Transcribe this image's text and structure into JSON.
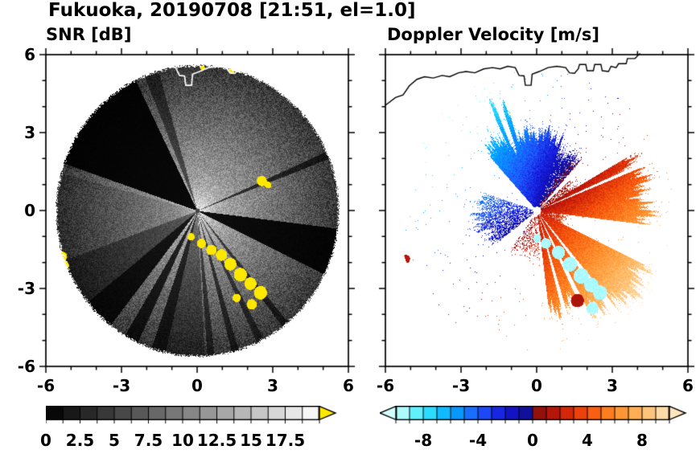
{
  "title": "Fukuoka, 20190708 [21:51, el=1.0]",
  "panels": {
    "left": {
      "subtitle": "SNR [dB]"
    },
    "right": {
      "subtitle": "Doppler Velocity [m/s]"
    }
  },
  "axes": {
    "xlim": [
      -6,
      6
    ],
    "ylim": [
      -6,
      6
    ],
    "major_ticks": [
      -6,
      -3,
      0,
      3,
      6
    ],
    "minor_tick_step": 1,
    "x_tick_labels": [
      "-6",
      "-3",
      "0",
      "3",
      "6"
    ],
    "y_tick_labels": [
      "-6",
      "-3",
      "0",
      "3",
      "6"
    ]
  },
  "colorbars": {
    "snr": {
      "min": 0,
      "max": 20,
      "bin_width": 1.25,
      "tick_values": [
        0,
        2.5,
        5,
        7.5,
        10,
        12.5,
        15,
        17.5
      ],
      "tick_labels": [
        "0",
        "2.5",
        "5",
        "7.5",
        "10",
        "12.5",
        "15",
        "17.5"
      ],
      "low_color": "#000000",
      "high_color": "#ffffff",
      "over_arrow_color": "#ffe800"
    },
    "velocity": {
      "min": -10,
      "max": 10,
      "bin_width": 1,
      "tick_values": [
        -8,
        -4,
        0,
        4,
        8
      ],
      "tick_labels": [
        "-8",
        "-4",
        "0",
        "4",
        "8"
      ]
    }
  },
  "coastline_km": [
    [
      -6.0,
      4.05
    ],
    [
      -5.6,
      4.35
    ],
    [
      -5.3,
      4.45
    ],
    [
      -5.05,
      4.8
    ],
    [
      -4.75,
      5.05
    ],
    [
      -4.45,
      5.15
    ],
    [
      -4.1,
      5.1
    ],
    [
      -3.75,
      5.2
    ],
    [
      -3.45,
      5.15
    ],
    [
      -3.1,
      5.3
    ],
    [
      -2.8,
      5.35
    ],
    [
      -2.45,
      5.3
    ],
    [
      -2.1,
      5.45
    ],
    [
      -1.75,
      5.5
    ],
    [
      -1.45,
      5.45
    ],
    [
      -1.15,
      5.55
    ],
    [
      -0.85,
      5.5
    ],
    [
      -0.7,
      5.2
    ],
    [
      -0.5,
      5.18
    ],
    [
      -0.45,
      4.82
    ],
    [
      -0.22,
      4.82
    ],
    [
      -0.18,
      5.25
    ],
    [
      0.1,
      5.35
    ],
    [
      0.45,
      5.5
    ],
    [
      0.8,
      5.55
    ],
    [
      1.15,
      5.5
    ],
    [
      1.3,
      5.3
    ],
    [
      1.5,
      5.28
    ],
    [
      1.65,
      5.45
    ],
    [
      1.7,
      5.62
    ],
    [
      1.95,
      5.62
    ],
    [
      2.0,
      5.38
    ],
    [
      2.25,
      5.38
    ],
    [
      2.3,
      5.62
    ],
    [
      2.55,
      5.62
    ],
    [
      2.6,
      5.38
    ],
    [
      2.85,
      5.35
    ],
    [
      2.95,
      5.55
    ],
    [
      3.15,
      5.5
    ],
    [
      3.25,
      5.65
    ],
    [
      3.55,
      5.65
    ],
    [
      3.6,
      5.85
    ],
    [
      3.9,
      5.85
    ],
    [
      4.1,
      6.05
    ]
  ],
  "chart_data": [
    {
      "type": "heatmap",
      "panel": "left",
      "title": "SNR [dB]",
      "units": "dB",
      "xlim": [
        -6,
        6
      ],
      "ylim": [
        -6,
        6
      ],
      "xticks": [
        -6,
        -3,
        0,
        3,
        6
      ],
      "yticks": [
        -6,
        -3,
        0,
        3,
        6
      ],
      "radar": {
        "max_range_km": 5.65,
        "snr_center_db": 15.5,
        "falloff_db_per_km": 2.05,
        "center_boost_db": 3.2,
        "speckle_db": 6,
        "sector_gains": [
          {
            "az": [
              289,
              334
            ],
            "gain": 0.05
          },
          {
            "az": [
              338,
              344
            ],
            "gain": 0.45
          },
          {
            "az": [
              97,
              116
            ],
            "gain": 0.07
          },
          {
            "az": [
              66,
              69
            ],
            "gain": 0.3
          },
          {
            "az": [
              140,
              143
            ],
            "gain": 0.35
          },
          {
            "az": [
              152,
              155
            ],
            "gain": 0.4
          },
          {
            "az": [
              163,
              166
            ],
            "gain": 0.35
          },
          {
            "az": [
              173,
              176
            ],
            "gain": 0.4
          },
          {
            "az": [
              177,
              193
            ],
            "gain": 0.55
          },
          {
            "az": [
              193,
              199
            ],
            "gain": 0.22
          },
          {
            "az": [
              205,
              211
            ],
            "gain": 0.2
          },
          {
            "az": [
              218,
              231
            ],
            "gain": 0.12
          },
          {
            "az": [
              231,
              250
            ],
            "gain": 0.45
          },
          {
            "az": [
              250,
              285
            ],
            "gain": 0.75
          }
        ],
        "strong_echoes_km": [
          {
            "x": -0.25,
            "y": -1.0,
            "r": 0.14
          },
          {
            "x": 0.15,
            "y": -1.25,
            "r": 0.18
          },
          {
            "x": 0.55,
            "y": -1.5,
            "r": 0.2
          },
          {
            "x": 0.95,
            "y": -1.7,
            "r": 0.22
          },
          {
            "x": 1.3,
            "y": -2.05,
            "r": 0.24
          },
          {
            "x": 1.7,
            "y": -2.45,
            "r": 0.26
          },
          {
            "x": 2.1,
            "y": -2.8,
            "r": 0.24
          },
          {
            "x": 2.5,
            "y": -3.15,
            "r": 0.26
          },
          {
            "x": 2.15,
            "y": -3.6,
            "r": 0.2
          },
          {
            "x": 1.55,
            "y": -3.35,
            "r": 0.16
          },
          {
            "x": 2.55,
            "y": 1.15,
            "r": 0.2
          },
          {
            "x": 2.8,
            "y": 1.0,
            "r": 0.13
          },
          {
            "x": -5.35,
            "y": -1.75,
            "r": 0.18
          },
          {
            "x": -5.3,
            "y": -2.1,
            "r": 0.2
          },
          {
            "x": 1.35,
            "y": 5.4,
            "r": 0.12
          },
          {
            "x": 1.65,
            "y": 5.45,
            "r": 0.12
          },
          {
            "x": 0.2,
            "y": 5.5,
            "r": 0.09
          }
        ]
      },
      "colormap": {
        "min": 0,
        "max": 20,
        "low": "#000000",
        "high": "#ffffff",
        "over": "#ffe800"
      }
    },
    {
      "type": "heatmap",
      "panel": "right",
      "title": "Doppler Velocity [m/s]",
      "units": "m/s",
      "xlim": [
        -6,
        6
      ],
      "ylim": [
        -6,
        6
      ],
      "xticks": [
        -6,
        -3,
        0,
        3,
        6
      ],
      "yticks": [
        -6,
        -3,
        0,
        3,
        6
      ],
      "field": {
        "max_range_km": 5.55,
        "outflow_azimuth_deg": 130,
        "speed_at_edge_ms": 10,
        "speed_profile_inner_fraction": 0.2,
        "noise_ms": 1.7,
        "echo_sectors": [
          {
            "az": [
              318,
              335
            ],
            "rmax": 3.4,
            "density": 1
          },
          {
            "az": [
              335,
              337.5
            ],
            "rmax": 4.7,
            "density": 1
          },
          {
            "az": [
              337.5,
              341
            ],
            "rmax": 3.0,
            "density": 1
          },
          {
            "az": [
              341,
              344
            ],
            "rmax": 4.4,
            "density": 1
          },
          {
            "az": [
              344,
              359.99
            ],
            "rmax": 3.3,
            "density": 1
          },
          {
            "az": [
              0,
              20
            ],
            "rmax": 3.3,
            "density": 1
          },
          {
            "az": [
              20,
              42
            ],
            "rmax": 2.8,
            "density": 0.9
          },
          {
            "az": [
              48,
              60
            ],
            "rmax": 2.0,
            "density": 0.65
          },
          {
            "az": [
              60,
              97
            ],
            "rmax": 4.7,
            "density": 1
          },
          {
            "az": [
              97,
              116
            ],
            "rmax": 1.3,
            "density": 0.8
          },
          {
            "az": [
              116,
              140
            ],
            "rmax": 5.3,
            "density": 1
          },
          {
            "az": [
              143,
              152
            ],
            "rmax": 5.0,
            "density": 1
          },
          {
            "az": [
              155,
              175
            ],
            "rmax": 4.2,
            "density": 1
          },
          {
            "az": [
              176,
              215
            ],
            "rmax": 1.9,
            "density": 0.35
          },
          {
            "az": [
              232,
              250
            ],
            "rmax": 2.3,
            "density": 0.7
          },
          {
            "az": [
              250,
              268
            ],
            "rmax": 2.7,
            "density": 0.65
          },
          {
            "az": [
              268,
              288
            ],
            "rmax": 2.5,
            "density": 0.55
          }
        ],
        "blocked_rays": [
          [
            66,
            68
          ],
          [
            140,
            143
          ],
          [
            152,
            155
          ],
          [
            163,
            165.5
          ],
          [
            173,
            176
          ]
        ],
        "clutter_blobs": [
          {
            "x": 0.0,
            "y": -1.05,
            "r": 0.16,
            "v": -9.5
          },
          {
            "x": 0.35,
            "y": -1.25,
            "r": 0.2,
            "v": -9.5
          },
          {
            "x": 0.85,
            "y": -1.6,
            "r": 0.26,
            "v": -9.5
          },
          {
            "x": 1.3,
            "y": -2.05,
            "r": 0.28,
            "v": -9.5
          },
          {
            "x": 1.75,
            "y": -2.5,
            "r": 0.3,
            "v": -9.5
          },
          {
            "x": 2.15,
            "y": -2.85,
            "r": 0.28,
            "v": -9.5
          },
          {
            "x": 2.5,
            "y": -3.15,
            "r": 0.28,
            "v": -9.5
          },
          {
            "x": 1.6,
            "y": -3.45,
            "r": 0.26,
            "v": 1.2
          },
          {
            "x": 2.2,
            "y": -3.75,
            "r": 0.24,
            "v": -9.5
          },
          {
            "x": -5.2,
            "y": -1.85,
            "r": 0.16,
            "v": 1.5
          },
          {
            "x": -5.3,
            "y": -2.2,
            "r": 0.18,
            "v": -9.5
          }
        ]
      },
      "colormap": {
        "stops": [
          [
            -10,
            [
              210,
              255,
              255
            ]
          ],
          [
            -8,
            [
              60,
              235,
              255
            ]
          ],
          [
            -6,
            [
              0,
              170,
              255
            ]
          ],
          [
            -4,
            [
              30,
              90,
              255
            ]
          ],
          [
            -2,
            [
              20,
              20,
              215
            ]
          ],
          [
            -0.001,
            [
              15,
              15,
              135
            ]
          ],
          [
            0.001,
            [
              130,
              15,
              10
            ]
          ],
          [
            2,
            [
              200,
              25,
              10
            ]
          ],
          [
            4,
            [
              245,
              80,
              10
            ]
          ],
          [
            6,
            [
              255,
              140,
              40
            ]
          ],
          [
            8,
            [
              255,
              185,
              100
            ]
          ],
          [
            10,
            [
              255,
              230,
              190
            ]
          ]
        ]
      }
    }
  ]
}
